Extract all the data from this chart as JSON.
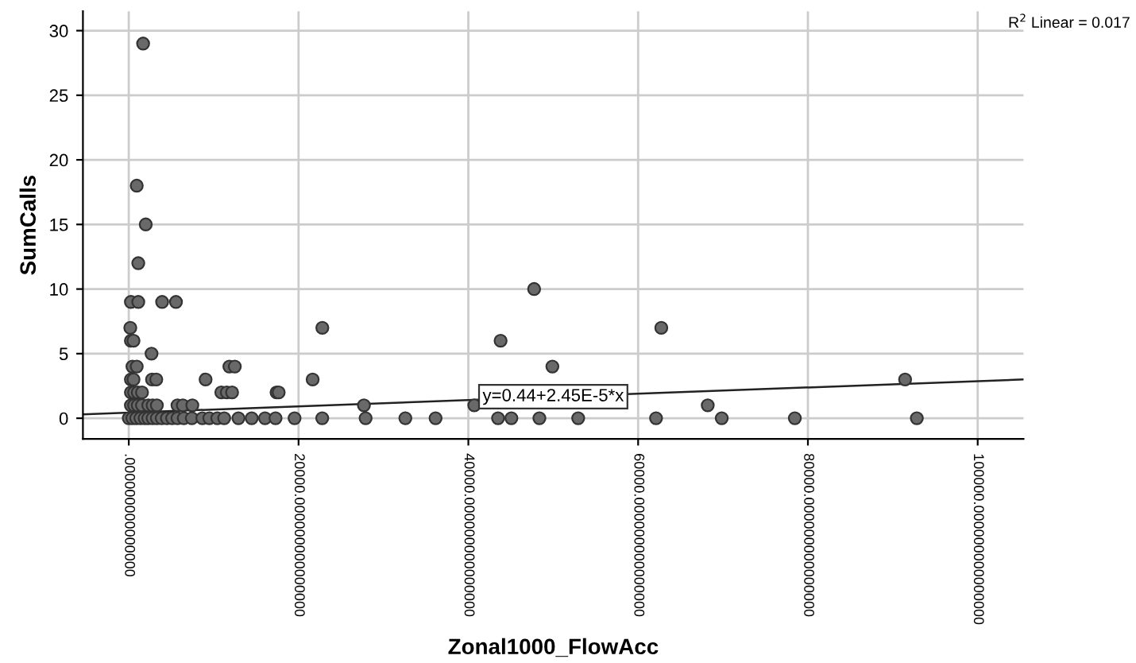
{
  "chart_data": {
    "type": "scatter",
    "xlabel": "Zonal1000_FlowAcc",
    "ylabel": "SumCalls",
    "series": [
      {
        "color": "#696969",
        "marker": "circle",
        "x": [
          1690,
          940,
          2000,
          1120,
          250,
          1120,
          3930,
          5560,
          180,
          22800,
          250,
          560,
          43800,
          2680,
          430,
          940,
          11850,
          12490,
          49900,
          250,
          560,
          2740,
          3240,
          9050,
          21660,
          91450,
          250,
          630,
          1060,
          1560,
          10900,
          11550,
          12170,
          17410,
          17660,
          250,
          630,
          1060,
          1560,
          2300,
          2810,
          3310,
          5740,
          6370,
          7490,
          27700,
          40700,
          68200,
          0,
          430,
          880,
          1370,
          1870,
          2300,
          2810,
          3310,
          3880,
          4490,
          5110,
          5740,
          6480,
          7430,
          8670,
          9490,
          10430,
          11240,
          12920,
          14480,
          16050,
          17290,
          19530,
          22790,
          27900,
          32580,
          36140,
          43500,
          45070,
          48370,
          52940,
          62110,
          69850,
          78460,
          92830,
          47750,
          62730
        ],
        "values": [
          29,
          18,
          15,
          12,
          9,
          9,
          9,
          9,
          7,
          7,
          6,
          6,
          6,
          5,
          4,
          4,
          4,
          4,
          4,
          3,
          3,
          3,
          3,
          3,
          3,
          3,
          2,
          2,
          2,
          2,
          2,
          2,
          2,
          2,
          2,
          1,
          1,
          1,
          1,
          1,
          1,
          1,
          1,
          1,
          1,
          1,
          1,
          1,
          0,
          0,
          0,
          0,
          0,
          0,
          0,
          0,
          0,
          0,
          0,
          0,
          0,
          0,
          0,
          0,
          0,
          0,
          0,
          0,
          0,
          0,
          0,
          0,
          0,
          0,
          0,
          0,
          0,
          0,
          0,
          0,
          0,
          0,
          0,
          10,
          7
        ]
      },
      {
        "type": "line",
        "color": "#222222",
        "line_style": "solid",
        "marker": "none",
        "x": [
          -5400,
          105400
        ],
        "values": [
          0.3,
          3.0
        ]
      }
    ],
    "xlim": [
      -5400,
      105400
    ],
    "xticks": [
      {
        "value": 0,
        "label": ".000000000000000"
      },
      {
        "value": 20000,
        "label": "20000.000000000000000"
      },
      {
        "value": 40000,
        "label": "40000.000000000000000"
      },
      {
        "value": 60000,
        "label": "60000.000000000000000"
      },
      {
        "value": 80000,
        "label": "80000.000000000000000"
      },
      {
        "value": 100000,
        "label": "100000.000000000000000"
      }
    ],
    "ylim": [
      -1.6,
      31.5
    ],
    "yticks": [
      0,
      5,
      10,
      15,
      20,
      25,
      30
    ],
    "grid": true,
    "legend": false,
    "annotations": [
      {
        "text": "y=0.44+2.45E-5*x",
        "x": 50000,
        "y": 1.67
      },
      "R$^{2}$ Linear = 0.017"
    ]
  }
}
